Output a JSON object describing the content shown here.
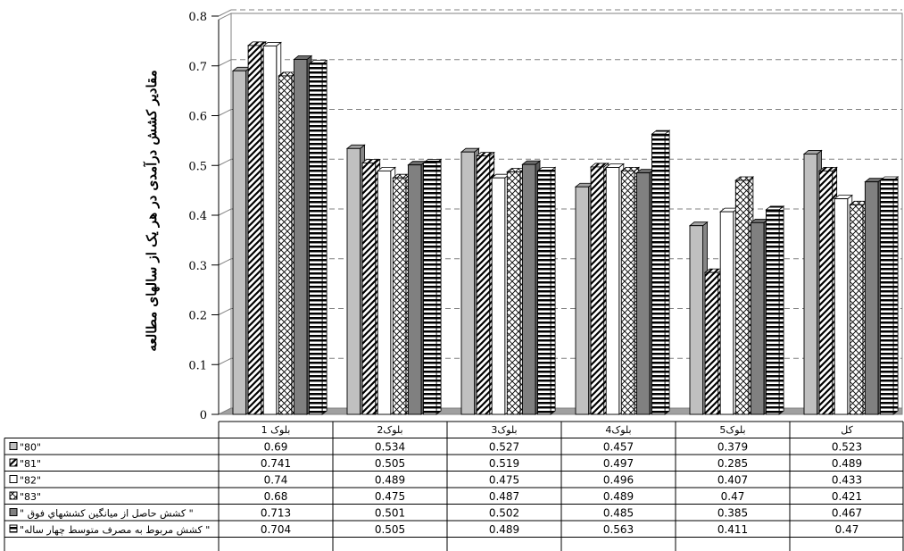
{
  "chart_data": {
    "type": "bar",
    "xlabel": "",
    "ylabel": "مقادیر کشش درآمدی در هر یک از سالهای مطالعه",
    "ylim": [
      0,
      0.8
    ],
    "yticks": [
      "0",
      "0.1",
      "0.2",
      "0.3",
      "0.4",
      "0.5",
      "0.6",
      "0.7",
      "0.8"
    ],
    "grid": true,
    "legend": "data-table",
    "categories": [
      "بلوک 1",
      "بلوک2",
      "بلوک3",
      "بلوک4",
      "بلوک5",
      "کل"
    ],
    "series": [
      {
        "name": "\"80\"",
        "color": "#c0c0c0",
        "pattern": "solid",
        "labels": [
          "0.69",
          "0.534",
          "0.527",
          "0.457",
          "0.379",
          "0.523"
        ],
        "values": [
          0.69,
          0.534,
          0.527,
          0.457,
          0.379,
          0.523
        ]
      },
      {
        "name": "\"81\"",
        "color": "#ffffff",
        "pattern": "diagonal",
        "labels": [
          "0.741",
          "0.505",
          "0.519",
          "0.497",
          "0.285",
          "0.489"
        ],
        "values": [
          0.741,
          0.505,
          0.519,
          0.497,
          0.285,
          0.489
        ]
      },
      {
        "name": "\"82\"",
        "color": "#ffffff",
        "pattern": "none",
        "labels": [
          "0.74",
          "0.489",
          "0.475",
          "0.496",
          "0.407",
          "0.433"
        ],
        "values": [
          0.74,
          0.489,
          0.475,
          0.496,
          0.407,
          0.433
        ]
      },
      {
        "name": "\"83\"",
        "color": "#ffffff",
        "pattern": "crosshatch",
        "labels": [
          "0.68",
          "0.475",
          "0.487",
          "0.489",
          "0.47",
          "0.421"
        ],
        "values": [
          0.68,
          0.475,
          0.487,
          0.489,
          0.47,
          0.421
        ]
      },
      {
        "name": "\" کشش حاصل از میانگین کششهاي فوق \"",
        "color": "#808080",
        "pattern": "solid",
        "labels": [
          "0.713",
          "0.501",
          "0.502",
          "0.485",
          "0.385",
          "0.467"
        ],
        "values": [
          0.713,
          0.501,
          0.502,
          0.485,
          0.385,
          0.467
        ]
      },
      {
        "name": "\"کشش مربوط به مصرف متوسط چهار ساله \"",
        "color": "#ffffff",
        "pattern": "horizontal",
        "labels": [
          "0.704",
          "0.505",
          "0.489",
          "0.563",
          "0.411",
          "0.47"
        ],
        "values": [
          0.704,
          0.505,
          0.489,
          0.563,
          0.411,
          0.47
        ]
      }
    ]
  }
}
